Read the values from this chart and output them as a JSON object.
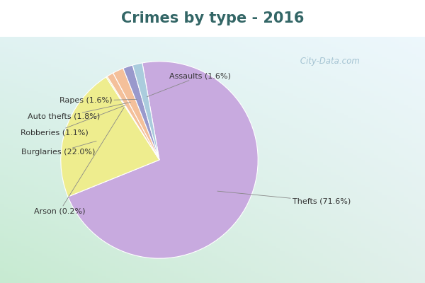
{
  "title": "Crimes by type - 2016",
  "slices": [
    {
      "label": "Thefts (71.6%)",
      "value": 71.6
    },
    {
      "label": "Burglaries (22.0%)",
      "value": 22.0
    },
    {
      "label": "Arson (0.2%)",
      "value": 0.2
    },
    {
      "label": "Robberies (1.1%)",
      "value": 1.1
    },
    {
      "label": "Auto thefts (1.8%)",
      "value": 1.8
    },
    {
      "label": "Rapes (1.6%)",
      "value": 1.6
    },
    {
      "label": "Assaults (1.6%)",
      "value": 1.6
    }
  ],
  "slice_colors": [
    "#C8AADF",
    "#EEED8E",
    "#EEED8E",
    "#F4C09A",
    "#F4C09A",
    "#9999CC",
    "#AACCDD"
  ],
  "background_top_color": "#00DDDD",
  "title_color": "#336666",
  "title_fontsize": 15,
  "watermark": " City-Data.com",
  "watermark_color": "#99BBCC",
  "label_fontsize": 8,
  "label_color": "#333333"
}
